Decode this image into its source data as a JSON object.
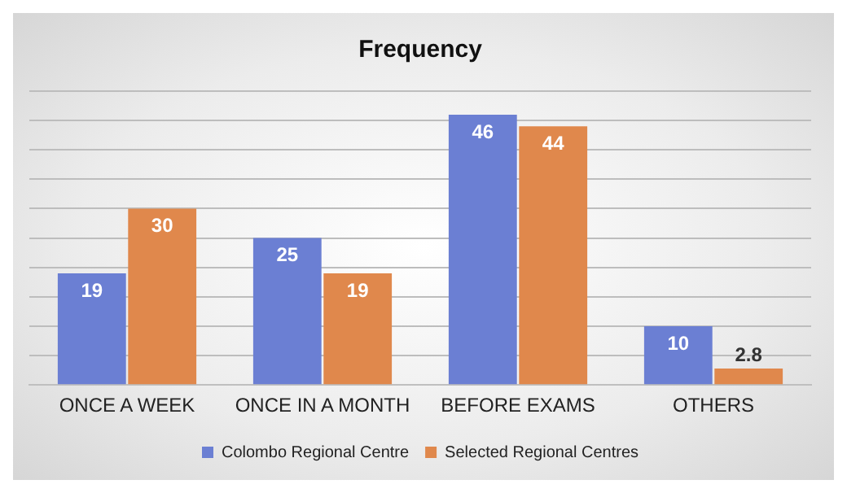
{
  "chart_data": {
    "type": "bar",
    "title": "Frequency",
    "categories": [
      "ONCE A WEEK",
      "ONCE IN A MONTH",
      "BEFORE EXAMS",
      "OTHERS"
    ],
    "series": [
      {
        "name": "Colombo Regional Centre",
        "color": "#6b7fd3",
        "values": [
          19,
          25,
          46,
          10
        ]
      },
      {
        "name": "Selected Regional Centres",
        "color": "#e0884c",
        "values": [
          30,
          19,
          44,
          2.8
        ]
      }
    ],
    "ylim": [
      0,
      50
    ],
    "yticks": [
      {
        "value": 0,
        "label": null
      },
      {
        "value": 5,
        "label": null
      },
      {
        "value": 10,
        "label": null
      },
      {
        "value": 15,
        "label": null
      },
      {
        "value": 20,
        "label": null
      },
      {
        "value": 25,
        "label": null
      },
      {
        "value": 30,
        "label": null
      },
      {
        "value": 35,
        "label": null
      },
      {
        "value": 40,
        "label": null
      },
      {
        "value": 45,
        "label": null
      },
      {
        "value": 50,
        "label": null
      }
    ],
    "tick_labels": "x",
    "grid": "y",
    "legend": "bottom",
    "data_labels": true
  }
}
